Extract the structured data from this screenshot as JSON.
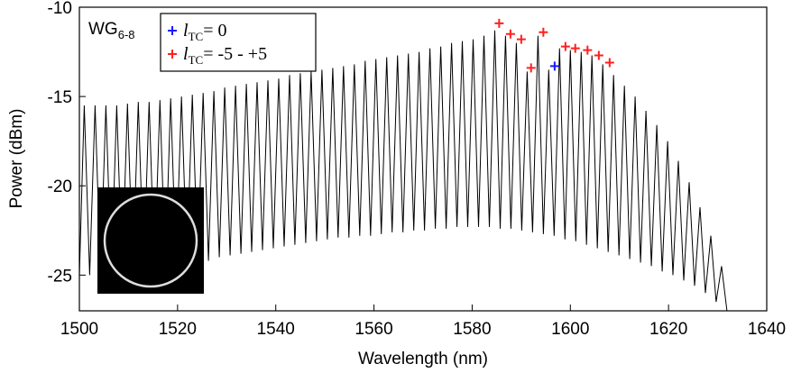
{
  "chart_data": {
    "type": "line",
    "annotation": {
      "main": "WG",
      "sub": "6-8"
    },
    "xlabel": "Wavelength (nm)",
    "ylabel": "Power (dBm)",
    "xlim": [
      1500,
      1640
    ],
    "ylim": [
      -27,
      -10
    ],
    "xticks": [
      1500,
      1520,
      1540,
      1560,
      1580,
      1600,
      1620,
      1640
    ],
    "yticks": [
      -25,
      -20,
      -15,
      -10
    ],
    "series": [
      {
        "color": "#000000",
        "x": [
          1500,
          1501.0,
          1502.1,
          1503.2,
          1504.3,
          1505.4,
          1506.5,
          1507.6,
          1508.7,
          1509.8,
          1510.9,
          1512.0,
          1513.1,
          1514.2,
          1515.3,
          1516.4,
          1517.5,
          1518.6,
          1519.7,
          1520.8,
          1521.9,
          1523.0,
          1524.1,
          1525.2,
          1526.3,
          1527.4,
          1528.5,
          1529.6,
          1530.7,
          1531.8,
          1532.9,
          1534.0,
          1535.1,
          1536.2,
          1537.3,
          1538.4,
          1539.5,
          1540.6,
          1541.7,
          1542.8,
          1543.9,
          1545.0,
          1546.1,
          1547.2,
          1548.3,
          1549.4,
          1550.5,
          1551.6,
          1552.7,
          1553.8,
          1554.9,
          1556.0,
          1557.1,
          1558.2,
          1559.3,
          1560.4,
          1561.5,
          1562.6,
          1563.7,
          1564.8,
          1565.9,
          1567.0,
          1568.1,
          1569.2,
          1570.3,
          1571.4,
          1572.5,
          1573.6,
          1574.7,
          1575.8,
          1576.9,
          1578.0,
          1579.1,
          1580.2,
          1581.3,
          1582.4,
          1583.5,
          1584.6,
          1585.7,
          1586.8,
          1587.9,
          1589.0,
          1590.1,
          1591.2,
          1592.3,
          1593.4,
          1594.5,
          1595.6,
          1596.7,
          1597.8,
          1598.9,
          1600.0,
          1601.1,
          1602.2,
          1603.3,
          1604.4,
          1605.5,
          1606.6,
          1607.7,
          1608.8,
          1609.9,
          1611.0,
          1612.1,
          1613.2,
          1614.3,
          1615.4,
          1616.5,
          1617.6,
          1618.7,
          1619.8,
          1620.9,
          1622.0,
          1623.1,
          1624.2,
          1625.3,
          1626.4,
          1627.5,
          1628.6,
          1629.7,
          1630.8,
          1631.9,
          1640
        ],
        "values": [
          -25,
          -15.5,
          -25.0,
          -15.5,
          -25.0,
          -15.5,
          -24.9,
          -15.5,
          -24.9,
          -15.4,
          -24.8,
          -15.3,
          -24.8,
          -15.3,
          -24.7,
          -15.2,
          -24.7,
          -15.1,
          -24.5,
          -15.0,
          -24.4,
          -14.9,
          -24.3,
          -14.8,
          -24.2,
          -14.7,
          -24.0,
          -14.5,
          -23.9,
          -14.4,
          -23.8,
          -14.3,
          -23.7,
          -14.2,
          -23.6,
          -14.1,
          -23.5,
          -14.0,
          -23.4,
          -13.8,
          -23.3,
          -13.7,
          -23.2,
          -13.6,
          -23.1,
          -13.5,
          -23.0,
          -13.4,
          -22.9,
          -13.3,
          -22.9,
          -13.2,
          -22.8,
          -13.0,
          -22.8,
          -12.9,
          -22.7,
          -12.8,
          -22.6,
          -12.7,
          -22.6,
          -12.6,
          -22.5,
          -12.5,
          -22.5,
          -12.3,
          -22.4,
          -12.2,
          -22.4,
          -12.0,
          -22.3,
          -11.9,
          -22.3,
          -11.8,
          -22.3,
          -11.6,
          -22.3,
          -11.3,
          -22.4,
          -11.6,
          -22.4,
          -12.0,
          -22.5,
          -13.6,
          -22.6,
          -11.6,
          -22.7,
          -13.5,
          -22.8,
          -12.3,
          -23.0,
          -12.4,
          -23.1,
          -12.5,
          -23.3,
          -12.7,
          -23.5,
          -13.2,
          -23.7,
          -13.8,
          -23.9,
          -14.4,
          -24.1,
          -15.0,
          -24.3,
          -15.8,
          -24.5,
          -16.6,
          -24.8,
          -17.5,
          -25.0,
          -18.6,
          -25.3,
          -19.8,
          -25.6,
          -21.2,
          -26.0,
          -22.8,
          -26.5,
          -24.5,
          -27.0,
          -27
        ]
      },
      {
        "type": "scatter",
        "color": "#1a1aff",
        "label": {
          "main": "l",
          "sub": "TC",
          "rest": "= 0"
        },
        "x": [
          1596.8
        ],
        "values": [
          -13.3
        ]
      },
      {
        "type": "scatter",
        "color": "#ff2020",
        "label": {
          "main": "l",
          "sub": "TC",
          "rest": "= -5 - +5"
        },
        "x": [
          1585.5,
          1587.8,
          1590.0,
          1592.0,
          1594.5,
          1599.0,
          1601.0,
          1603.5,
          1605.8,
          1608.0
        ],
        "values": [
          -10.9,
          -11.5,
          -11.8,
          -13.4,
          -11.4,
          -12.2,
          -12.3,
          -12.4,
          -12.7,
          -13.1
        ]
      }
    ]
  }
}
